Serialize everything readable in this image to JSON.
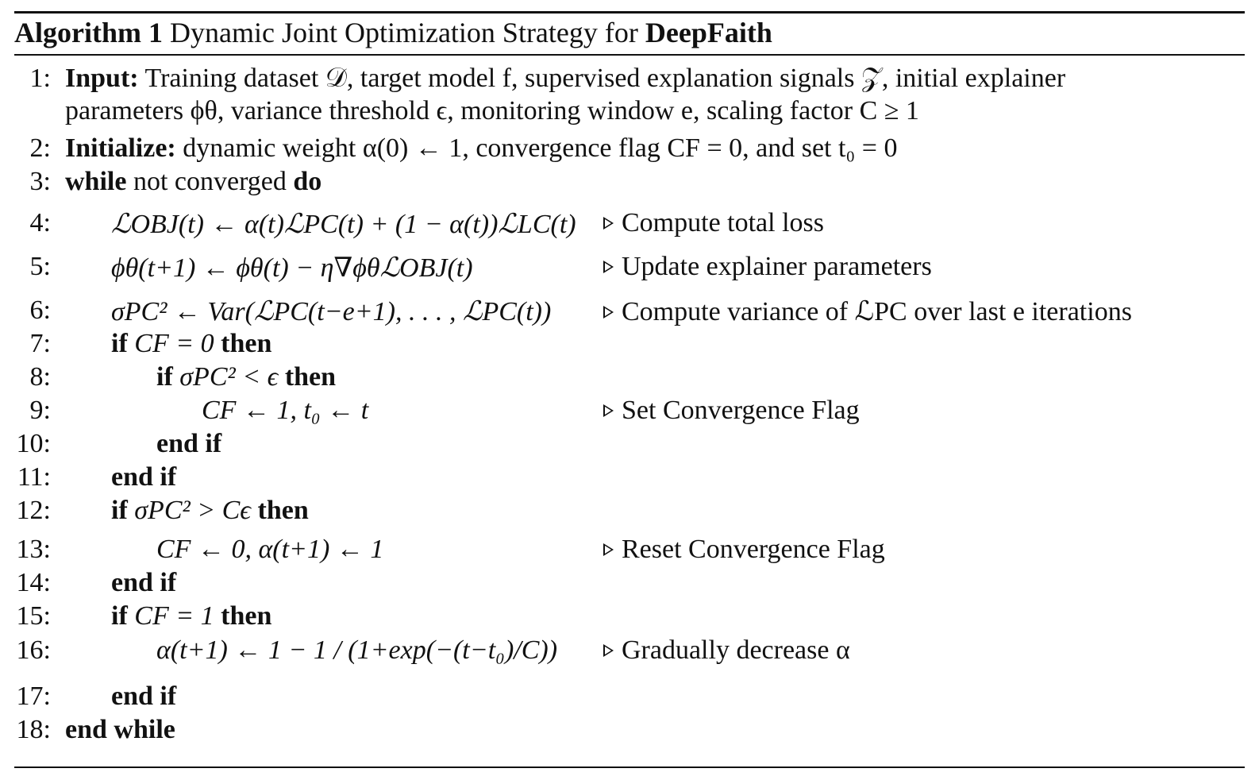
{
  "caption": {
    "label": "Algorithm 1",
    "text": " Dynamic Joint Optimization Strategy for ",
    "name": "DeepFaith"
  },
  "lines": [
    {
      "num": "1:",
      "kw": "Input:",
      "text": " Training dataset 𝒟, target model f, supervised explanation signals 𝒵, initial explainer"
    },
    {
      "num": "",
      "kw": "",
      "text": "parameters ϕθ, variance threshold ϵ, monitoring window e, scaling factor C ≥ 1"
    },
    {
      "num": "2:",
      "kw": "Initialize:",
      "text": " dynamic weight α(0) ← 1, convergence flag CF = 0, and set t₀ = 0"
    },
    {
      "num": "3:",
      "kw": "while",
      "text": " not converged ",
      "kw2": "do"
    },
    {
      "num": "4:",
      "text": "ℒOBJ(t) ← α(t)ℒPC(t) + (1 − α(t))ℒLC(t)",
      "comment": "Compute total loss"
    },
    {
      "num": "5:",
      "text": "ϕθ(t+1) ← ϕθ(t) − η∇ϕθℒOBJ(t)",
      "comment": "Update explainer parameters"
    },
    {
      "num": "6:",
      "text": "σPC² ← Var(ℒPC(t−e+1), . . . , ℒPC(t))",
      "comment": "Compute variance of ℒPC over last e iterations"
    },
    {
      "num": "7:",
      "kw": "if",
      "text": " CF = 0 ",
      "kw2": "then"
    },
    {
      "num": "8:",
      "kw": "if",
      "text": " σPC² < ϵ ",
      "kw2": "then"
    },
    {
      "num": "9:",
      "text": "CF ← 1, t₀ ← t",
      "comment": "Set Convergence Flag"
    },
    {
      "num": "10:",
      "kw": "end if"
    },
    {
      "num": "11:",
      "kw": "end if"
    },
    {
      "num": "12:",
      "kw": "if",
      "text": " σPC² > Cϵ ",
      "kw2": "then"
    },
    {
      "num": "13:",
      "text": "CF ← 0, α(t+1) ← 1",
      "comment": "Reset Convergence Flag"
    },
    {
      "num": "14:",
      "kw": "end if"
    },
    {
      "num": "15:",
      "kw": "if",
      "text": " CF = 1 ",
      "kw2": "then"
    },
    {
      "num": "16:",
      "text": "α(t+1) ← 1 − 1 / (1+exp(−(t−t₀)/C))",
      "comment": "Gradually decrease α"
    },
    {
      "num": "17:",
      "kw": "end if"
    },
    {
      "num": "18:",
      "kw": "end while"
    }
  ]
}
